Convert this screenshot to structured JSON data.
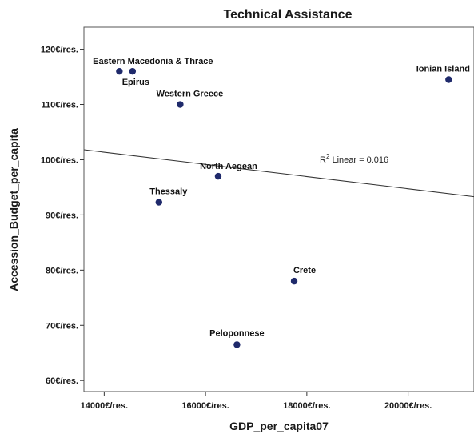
{
  "chart_data": {
    "type": "scatter",
    "title": "Technical Assistance",
    "xlabel": "GDP_per_capita07",
    "ylabel": "Accession_Budget_per_capita",
    "xlim": [
      13600,
      21300
    ],
    "ylim": [
      58,
      124
    ],
    "x_ticks": [
      {
        "value": 14000,
        "label": "14000€/res."
      },
      {
        "value": 16000,
        "label": "16000€/res."
      },
      {
        "value": 18000,
        "label": "18000€/res."
      },
      {
        "value": 20000,
        "label": "20000€/res."
      }
    ],
    "y_ticks": [
      {
        "value": 60,
        "label": "60€/res."
      },
      {
        "value": 70,
        "label": "70€/res."
      },
      {
        "value": 80,
        "label": "80€/res."
      },
      {
        "value": 90,
        "label": "90€/res."
      },
      {
        "value": 100,
        "label": "100€/res."
      },
      {
        "value": 110,
        "label": "110€/res."
      },
      {
        "value": 120,
        "label": "120€/res."
      }
    ],
    "points": [
      {
        "label": "Eastern Macedonia & Thrace",
        "x": 14300,
        "y": 116
      },
      {
        "label": "Epirus",
        "x": 14560,
        "y": 116
      },
      {
        "label": "Western Greece",
        "x": 15500,
        "y": 110
      },
      {
        "label": "Ionian Island",
        "x": 20800,
        "y": 114.5
      },
      {
        "label": "North Aegean",
        "x": 16250,
        "y": 97
      },
      {
        "label": "Thessaly",
        "x": 15080,
        "y": 92.3
      },
      {
        "label": "Crete",
        "x": 17750,
        "y": 78
      },
      {
        "label": "Peloponnese",
        "x": 16620,
        "y": 66.5
      }
    ],
    "fit_line": {
      "x": [
        13600,
        21300
      ],
      "y": [
        101.8,
        93.3
      ]
    },
    "fit_label": {
      "prefix": "R",
      "sup": "2",
      "suffix": " Linear = 0.016"
    },
    "marker_color": "#1f2a6b",
    "grid": false
  }
}
